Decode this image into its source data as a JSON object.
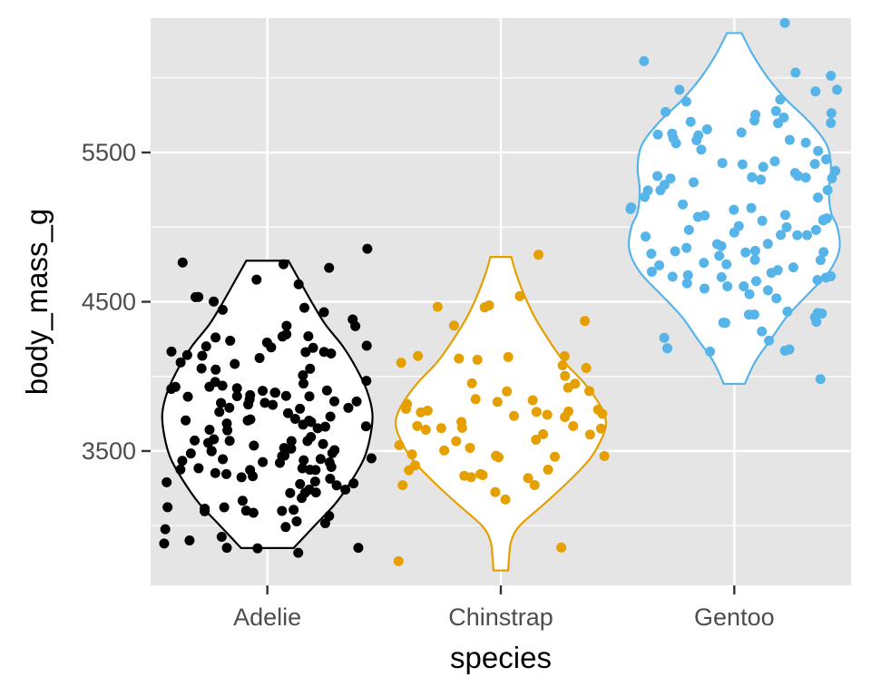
{
  "chart_data": {
    "type": "violin",
    "xlabel": "species",
    "ylabel": "body_mass_g",
    "categories": [
      "Adelie",
      "Chinstrap",
      "Gentoo"
    ],
    "ylim": [
      2600,
      6400
    ],
    "yticks": [
      3500,
      4500,
      5500
    ],
    "grid": true,
    "legend": "none",
    "colors": {
      "Adelie": "#000000",
      "Chinstrap": "#E69F00",
      "Gentoo": "#56B4E9"
    },
    "violins": [
      {
        "species": "Adelie",
        "range": [
          2850,
          4775
        ],
        "profile": [
          [
            2850,
            0.25
          ],
          [
            3000,
            0.45
          ],
          [
            3150,
            0.65
          ],
          [
            3300,
            0.8
          ],
          [
            3450,
            0.92
          ],
          [
            3600,
            0.98
          ],
          [
            3750,
            1.0
          ],
          [
            3900,
            0.95
          ],
          [
            4050,
            0.85
          ],
          [
            4200,
            0.72
          ],
          [
            4350,
            0.55
          ],
          [
            4500,
            0.42
          ],
          [
            4650,
            0.3
          ],
          [
            4775,
            0.2
          ]
        ]
      },
      {
        "species": "Chinstrap",
        "range": [
          2700,
          4800
        ],
        "profile": [
          [
            2700,
            0.07
          ],
          [
            2800,
            0.08
          ],
          [
            2900,
            0.1
          ],
          [
            3000,
            0.18
          ],
          [
            3150,
            0.42
          ],
          [
            3300,
            0.65
          ],
          [
            3450,
            0.85
          ],
          [
            3600,
            0.97
          ],
          [
            3700,
            1.0
          ],
          [
            3800,
            0.95
          ],
          [
            3950,
            0.8
          ],
          [
            4100,
            0.6
          ],
          [
            4250,
            0.45
          ],
          [
            4400,
            0.32
          ],
          [
            4550,
            0.22
          ],
          [
            4700,
            0.14
          ],
          [
            4800,
            0.1
          ]
        ]
      },
      {
        "species": "Gentoo",
        "range": [
          3950,
          6300
        ],
        "profile": [
          [
            3950,
            0.1
          ],
          [
            4100,
            0.2
          ],
          [
            4250,
            0.35
          ],
          [
            4400,
            0.5
          ],
          [
            4550,
            0.7
          ],
          [
            4700,
            0.9
          ],
          [
            4850,
            1.0
          ],
          [
            5000,
            0.98
          ],
          [
            5100,
            0.92
          ],
          [
            5250,
            0.9
          ],
          [
            5400,
            0.92
          ],
          [
            5550,
            0.88
          ],
          [
            5700,
            0.72
          ],
          [
            5850,
            0.5
          ],
          [
            6000,
            0.32
          ],
          [
            6150,
            0.18
          ],
          [
            6300,
            0.07
          ]
        ]
      }
    ],
    "points": [
      {
        "species": "Adelie",
        "values": [
          3750,
          3800,
          3250,
          3450,
          3650,
          3625,
          4675,
          3475,
          4250,
          3300,
          3700,
          3200,
          3800,
          4400,
          3700,
          3450,
          4500,
          3325,
          4200,
          3400,
          3600,
          3800,
          3950,
          3800,
          3800,
          3550,
          3200,
          3150,
          3950,
          3250,
          3900,
          3300,
          3900,
          3325,
          4150,
          3950,
          3550,
          3300,
          4650,
          3150,
          3900,
          3100,
          4400,
          3000,
          4600,
          3425,
          2975,
          3450,
          4150,
          3500,
          4300,
          3450,
          4050,
          2900,
          3700,
          3550,
          3800,
          2850,
          3750,
          3150,
          4400,
          3600,
          4050,
          2850,
          3950,
          3350,
          4100,
          3050,
          4450,
          3600,
          3900,
          3550,
          4150,
          3700,
          4250,
          3700,
          3900,
          3550,
          4000,
          3200,
          4700,
          3800,
          4200,
          3350,
          3550,
          3800,
          3500,
          3950,
          3600,
          3550,
          4300,
          3400,
          4450,
          3300,
          4300,
          3700,
          4350,
          2900,
          4100,
          3725,
          4725,
          3075,
          4250,
          2925,
          3550,
          3750,
          3900,
          3175,
          4775,
          3825,
          4600,
          3200,
          4275,
          3900,
          4075,
          2900,
          3775,
          3350,
          3325,
          3150,
          3500,
          3450,
          3875,
          3050,
          4000,
          3275,
          4300,
          3050,
          4000,
          3325,
          3500,
          3500,
          4475,
          3425,
          3900,
          3175,
          3975,
          3400,
          4250,
          3400,
          3475,
          3050,
          3725,
          3000,
          3650,
          4250,
          3475,
          3450,
          3750,
          3700,
          4000
        ]
      },
      {
        "species": "Chinstrap",
        "values": [
          3500,
          3900,
          3650,
          3525,
          3725,
          3950,
          3250,
          3750,
          4150,
          3700,
          3800,
          3775,
          3700,
          4050,
          3575,
          4050,
          3300,
          3700,
          3450,
          4400,
          3600,
          3400,
          2900,
          3800,
          3300,
          4150,
          3400,
          3800,
          3700,
          4550,
          3200,
          4300,
          3350,
          4100,
          3600,
          3900,
          3850,
          4800,
          2700,
          4500,
          3950,
          3650,
          3550,
          3500,
          3675,
          4450,
          3400,
          4300,
          3250,
          3675,
          3325,
          3950,
          3600,
          4050,
          3350,
          3450,
          3250,
          4050,
          3800,
          3525,
          3950,
          3650,
          3650,
          4000,
          3400,
          3775,
          4100,
          3775
        ]
      },
      {
        "species": "Gentoo",
        "values": [
          4500,
          5700,
          4450,
          5700,
          5400,
          4550,
          4800,
          5200,
          4400,
          5150,
          4650,
          5550,
          4650,
          5850,
          4200,
          5850,
          4150,
          6300,
          4800,
          5350,
          5700,
          5000,
          4400,
          5050,
          5000,
          5100,
          4100,
          5650,
          4600,
          5550,
          5250,
          4700,
          5050,
          6050,
          5150,
          5400,
          4950,
          5250,
          4350,
          5350,
          3950,
          5700,
          4300,
          4750,
          5550,
          4900,
          4200,
          5400,
          5100,
          5300,
          4850,
          5300,
          4400,
          5000,
          4900,
          5050,
          4300,
          5000,
          4450,
          5550,
          4200,
          5300,
          4400,
          5650,
          4700,
          5700,
          4650,
          5800,
          4700,
          5550,
          4750,
          5000,
          5100,
          5200,
          4700,
          5800,
          4600,
          6000,
          4750,
          5950,
          4625,
          5450,
          4725,
          5350,
          4750,
          5600,
          4600,
          5300,
          4875,
          5550,
          4950,
          5400,
          4750,
          5650,
          4850,
          5200,
          4925,
          4875,
          4625,
          5250,
          4850,
          5600,
          4975,
          5500,
          4725,
          5500,
          4700,
          5500,
          4575,
          5500,
          5000,
          5950,
          4650,
          5500,
          4375,
          5850,
          4875,
          6000,
          4925,
          4850,
          5750,
          5200,
          5400
        ]
      }
    ]
  }
}
